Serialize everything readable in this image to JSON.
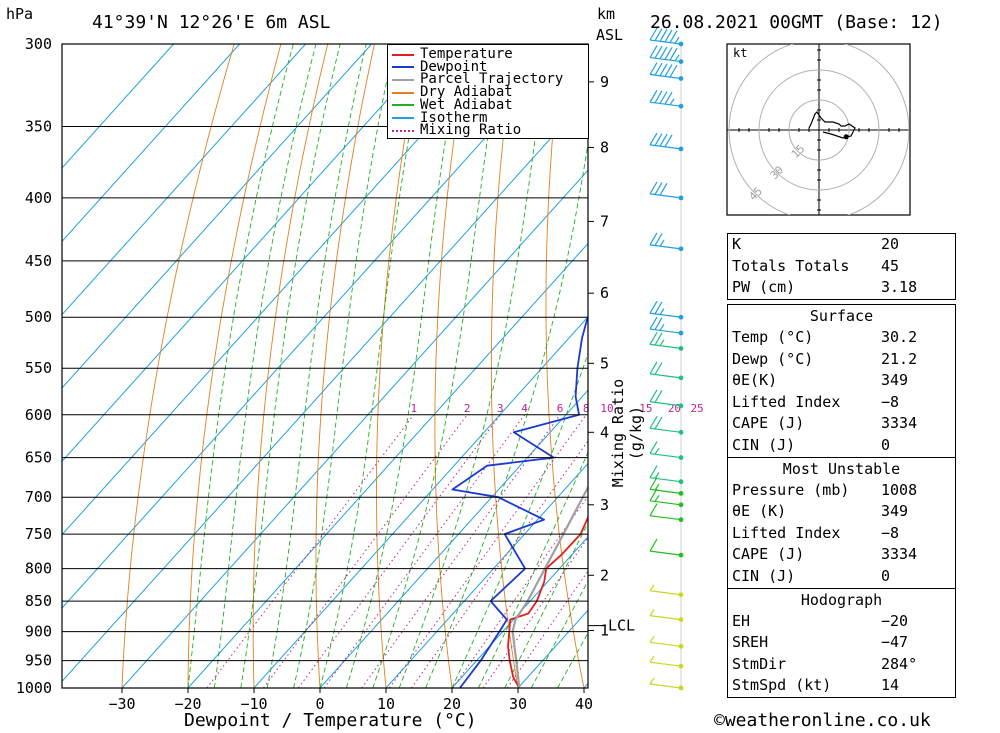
{
  "header": {
    "location": "41°39'N 12°26'E 6m ASL",
    "datetime": "26.08.2021 00GMT (Base: 12)",
    "pressure_unit": "hPa",
    "height_unit": "km",
    "height_unit2": "ASL",
    "hodo_unit": "kt"
  },
  "footer": {
    "xlabel": "Dewpoint / Temperature (°C)",
    "credit": "©weatheronline.co.uk"
  },
  "chart_data": {
    "type": "line",
    "title": "41°39'N 12°26'E 6m ASL",
    "xlabel": "Dewpoint / Temperature (°C)",
    "ylabel": "hPa",
    "y2label": "Mixing Ratio (g/kg)",
    "xlim": [
      -40,
      40
    ],
    "ylim": [
      1000,
      300
    ],
    "log_y": true,
    "x_ticks": [
      "−30",
      "−20",
      "−10",
      "0",
      "10",
      "20",
      "30",
      "40"
    ],
    "x_tick_values": [
      -30,
      -20,
      -10,
      0,
      10,
      20,
      30,
      40
    ],
    "pressure_levels": [
      300,
      350,
      400,
      450,
      500,
      550,
      600,
      650,
      700,
      750,
      800,
      850,
      900,
      950,
      1000
    ],
    "height_ticks": [
      {
        "label": "9",
        "p": 322
      },
      {
        "label": "8",
        "p": 364
      },
      {
        "label": "7",
        "p": 418
      },
      {
        "label": "6",
        "p": 478
      },
      {
        "label": "5",
        "p": 545
      },
      {
        "label": "4",
        "p": 620
      },
      {
        "label": "3",
        "p": 710
      },
      {
        "label": "2",
        "p": 810
      },
      {
        "label": "1",
        "p": 898
      }
    ],
    "lcl": {
      "label": "LCL",
      "p": 890
    },
    "mixing_ratio_labels": [
      "1",
      "2",
      "3",
      "4",
      "6",
      "8",
      "10",
      "15",
      "20",
      "25"
    ],
    "mixing_ratio_values": [
      1,
      2,
      3,
      4,
      6,
      8,
      10,
      15,
      20,
      25
    ],
    "legend": {
      "position": "top-right",
      "entries": [
        {
          "label": "Temperature",
          "color": "#e02020",
          "style": "solid"
        },
        {
          "label": "Dewpoint",
          "color": "#1a3ad0",
          "style": "solid"
        },
        {
          "label": "Parcel Trajectory",
          "color": "#a0a0a0",
          "style": "solid"
        },
        {
          "label": "Dry Adiabat",
          "color": "#e08020",
          "style": "solid"
        },
        {
          "label": "Wet Adiabat",
          "color": "#20b020",
          "style": "solid"
        },
        {
          "label": "Isotherm",
          "color": "#20a0e0",
          "style": "solid"
        },
        {
          "label": "Mixing Ratio",
          "color": "#c02090",
          "style": "dotted"
        }
      ]
    },
    "series": [
      {
        "name": "Temperature",
        "color": "#e02020",
        "points": [
          [
            1000,
            30.2
          ],
          [
            980,
            27.8
          ],
          [
            950,
            25.0
          ],
          [
            925,
            22.8
          ],
          [
            900,
            21.0
          ],
          [
            880,
            19.5
          ],
          [
            870,
            21.4
          ],
          [
            850,
            21.0
          ],
          [
            820,
            19.5
          ],
          [
            800,
            18.0
          ],
          [
            780,
            18.4
          ],
          [
            750,
            18.5
          ],
          [
            720,
            17.0
          ],
          [
            700,
            16.5
          ],
          [
            675,
            16.0
          ],
          [
            650,
            15.0
          ],
          [
            620,
            14.4
          ],
          [
            600,
            13.7
          ],
          [
            580,
            12.6
          ],
          [
            550,
            10.4
          ],
          [
            520,
            7.8
          ],
          [
            500,
            6.5
          ],
          [
            480,
            4.2
          ],
          [
            460,
            2.2
          ],
          [
            450,
            0.3
          ],
          [
            430,
            -2.3
          ],
          [
            400,
            -6.0
          ],
          [
            380,
            -8.3
          ],
          [
            350,
            -12.8
          ],
          [
            320,
            -18.0
          ],
          [
            300,
            -21.5
          ]
        ]
      },
      {
        "name": "Dewpoint",
        "color": "#1a3ad0",
        "points": [
          [
            1000,
            21.2
          ],
          [
            950,
            20.6
          ],
          [
            900,
            19.5
          ],
          [
            880,
            19.0
          ],
          [
            850,
            14.0
          ],
          [
            800,
            14.8
          ],
          [
            750,
            7.0
          ],
          [
            730,
            11.0
          ],
          [
            700,
            1.0
          ],
          [
            690,
            -7.0
          ],
          [
            675,
            -6.0
          ],
          [
            660,
            -5.0
          ],
          [
            650,
            4.0
          ],
          [
            620,
            -5.5
          ],
          [
            600,
            2.0
          ],
          [
            580,
            -1.0
          ],
          [
            550,
            -4.6
          ],
          [
            520,
            -8.0
          ],
          [
            500,
            -10.0
          ],
          [
            480,
            -6.0
          ],
          [
            475,
            4.6
          ],
          [
            460,
            1.6
          ],
          [
            440,
            -3.4
          ],
          [
            400,
            -3.3
          ],
          [
            390,
            -9.0
          ],
          [
            350,
            -11.8
          ],
          [
            320,
            -13.2
          ],
          [
            310,
            -7.8
          ],
          [
            300,
            -12.0
          ]
        ]
      },
      {
        "name": "Parcel Trajectory",
        "color": "#a0a0a0",
        "points": [
          [
            1000,
            30.2
          ],
          [
            950,
            26.0
          ],
          [
            900,
            21.5
          ],
          [
            880,
            20.3
          ],
          [
            850,
            19.6
          ],
          [
            800,
            17.8
          ],
          [
            750,
            15.9
          ],
          [
            700,
            13.8
          ],
          [
            650,
            11.6
          ],
          [
            600,
            9.0
          ],
          [
            550,
            6.3
          ],
          [
            500,
            3.0
          ],
          [
            450,
            -0.7
          ],
          [
            400,
            -5.3
          ],
          [
            370,
            -8.5
          ]
        ]
      }
    ]
  },
  "hodograph": {
    "unit": "kt",
    "ring_labels": [
      "15",
      "30",
      "45"
    ],
    "ring_values": [
      15,
      30,
      45
    ],
    "trace_uv": [
      [
        -5,
        1
      ],
      [
        -4,
        3
      ],
      [
        -2,
        8
      ],
      [
        -1,
        9
      ],
      [
        1,
        6
      ],
      [
        3,
        4
      ],
      [
        7,
        4
      ],
      [
        10,
        3
      ],
      [
        11,
        2
      ],
      [
        13,
        2
      ],
      [
        15,
        3
      ],
      [
        18,
        1
      ],
      [
        16,
        -3
      ],
      [
        12,
        -4
      ],
      [
        6,
        -2
      ],
      [
        2,
        -1
      ]
    ],
    "storm_motion_uv": [
      13.6,
      -3.4
    ]
  },
  "wind_barbs": [
    {
      "p": 300,
      "label": "55"
    },
    {
      "p": 310,
      "label": "55"
    },
    {
      "p": 320,
      "label": "50"
    },
    {
      "p": 337,
      "label": "45"
    },
    {
      "p": 365,
      "label": "40"
    },
    {
      "p": 400,
      "label": "30"
    },
    {
      "p": 440,
      "label": "25"
    },
    {
      "p": 500,
      "label": "25"
    },
    {
      "p": 515,
      "label": "25"
    },
    {
      "p": 530,
      "label": "25"
    },
    {
      "p": 560,
      "label": "20"
    },
    {
      "p": 590,
      "label": "20"
    },
    {
      "p": 620,
      "label": "20"
    },
    {
      "p": 650,
      "label": "15"
    },
    {
      "p": 680,
      "label": "15"
    },
    {
      "p": 695,
      "label": "15"
    },
    {
      "p": 710,
      "label": "15"
    },
    {
      "p": 730,
      "label": "10"
    },
    {
      "p": 780,
      "label": "10"
    },
    {
      "p": 840,
      "label": "5"
    },
    {
      "p": 880,
      "label": "5"
    },
    {
      "p": 925,
      "label": "5"
    },
    {
      "p": 960,
      "label": "5"
    },
    {
      "p": 1000,
      "label": "5"
    }
  ],
  "indices": {
    "main": [
      {
        "label": "K",
        "value": "20"
      },
      {
        "label": "Totals Totals",
        "value": "45"
      },
      {
        "label": "PW (cm)",
        "value": "3.18"
      }
    ],
    "surface": {
      "title": "Surface",
      "rows": [
        {
          "label": "Temp (°C)",
          "value": "30.2"
        },
        {
          "label": "Dewp (°C)",
          "value": "21.2"
        },
        {
          "label": "θE(K)",
          "value": "349"
        },
        {
          "label": "Lifted Index",
          "value": "−8"
        },
        {
          "label": "CAPE (J)",
          "value": "3334"
        },
        {
          "label": "CIN (J)",
          "value": "0"
        }
      ]
    },
    "most_unstable": {
      "title": "Most Unstable",
      "rows": [
        {
          "label": "Pressure (mb)",
          "value": "1008"
        },
        {
          "label": "θE (K)",
          "value": "349"
        },
        {
          "label": "Lifted Index",
          "value": "−8"
        },
        {
          "label": "CAPE (J)",
          "value": "3334"
        },
        {
          "label": "CIN (J)",
          "value": "0"
        }
      ]
    },
    "hodograph": {
      "title": "Hodograph",
      "rows": [
        {
          "label": "EH",
          "value": "−20"
        },
        {
          "label": "SREH",
          "value": "−47"
        },
        {
          "label": "StmDir",
          "value": "284°"
        },
        {
          "label": "StmSpd (kt)",
          "value": "14"
        }
      ]
    }
  }
}
